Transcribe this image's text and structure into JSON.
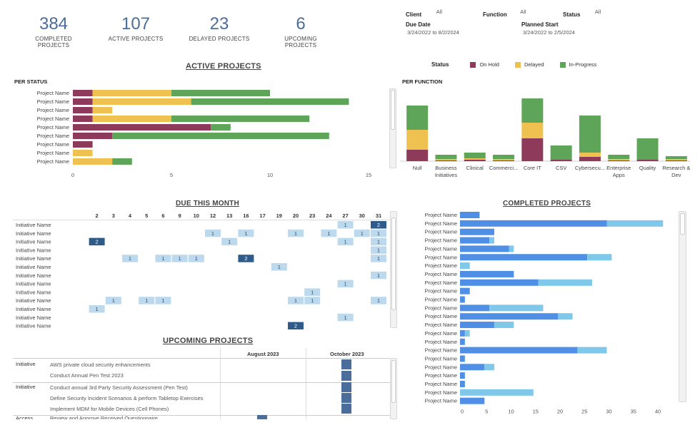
{
  "kpis": [
    {
      "value": "384",
      "label": "COMPLETED PROJECTS"
    },
    {
      "value": "107",
      "label": "ACTIVE PROJECTS"
    },
    {
      "value": "23",
      "label": "DELAYED PROJECTS"
    },
    {
      "value": "6",
      "label": "UPCOMING PROJECTS"
    }
  ],
  "filters": {
    "client_label": "Client",
    "client_value": "All",
    "function_label": "Function",
    "function_value": "All",
    "status_label": "Status",
    "status_value": "All",
    "due_label": "Due Date",
    "due_value": "3/24/2022 to 8/2/2024",
    "planned_label": "Planned Start",
    "planned_value": "3/24/2022 to 2/5/2024"
  },
  "colors": {
    "on_hold": "#8e3b5b",
    "delayed": "#efc150",
    "in_progress": "#5ea55a",
    "completed_dark": "#4f8fe6",
    "completed_light": "#7fc8ea",
    "heat_light": "#bcd9ee",
    "heat_dark": "#2f5b8a"
  },
  "legend": {
    "title": "Status",
    "items": [
      "On Hold",
      "Delayed",
      "In-Progress"
    ]
  },
  "active_title": "ACTIVE PROJECTS",
  "per_status_title": "PER STATUS",
  "per_function_title": "PER FUNCTION",
  "due_title": "DUE THIS MONTH",
  "completed_title": "COMPLETED PROJECTS",
  "upcoming_title": "UPCOMING PROJECTS",
  "chart_data": [
    {
      "type": "bar",
      "orientation": "horizontal",
      "stacked": true,
      "categories": [
        "Project Name",
        "Project Name",
        "Project Name",
        "Project Name",
        "Project Name",
        "Project Name",
        "Project Name",
        "Project Name",
        "Project Name"
      ],
      "series": [
        {
          "name": "On Hold",
          "values": [
            1,
            1,
            1,
            1,
            7,
            2,
            1,
            0,
            0
          ]
        },
        {
          "name": "Delayed",
          "values": [
            4,
            5,
            1,
            4,
            0,
            0,
            0,
            1,
            2
          ]
        },
        {
          "name": "In-Progress",
          "values": [
            5,
            8,
            0,
            7,
            1,
            11,
            0,
            0,
            1
          ]
        }
      ],
      "xticks": [
        "0",
        "5",
        "10",
        "15"
      ],
      "xlim": [
        0,
        15
      ]
    },
    {
      "type": "bar",
      "stacked": true,
      "categories": [
        "Null",
        "Business Initiatives",
        "Clinical",
        "Commerci...",
        "Core IT",
        "CSV",
        "Cybersecu...",
        "Enterprise Apps",
        "Quality",
        "Research & Dev"
      ],
      "series": [
        {
          "name": "On Hold",
          "values": [
            8,
            0.5,
            1,
            0.5,
            16,
            1,
            3,
            0.5,
            1,
            0.5
          ]
        },
        {
          "name": "Delayed",
          "values": [
            14,
            1,
            1,
            1,
            11,
            0,
            3,
            1,
            0,
            1
          ]
        },
        {
          "name": "In-Progress",
          "values": [
            17,
            3,
            4,
            3,
            17,
            10,
            26,
            3,
            15,
            2
          ]
        }
      ],
      "ylim": [
        0,
        45
      ]
    },
    {
      "type": "bar",
      "orientation": "horizontal",
      "stacked": true,
      "categories": [
        "Project Name",
        "Project Name",
        "Project Name",
        "Project Name",
        "Project Name",
        "Project Name",
        "Project Name",
        "Project Name",
        "Project Name",
        "Project Name",
        "Project Name",
        "Project Name",
        "Project Name",
        "Project Name",
        "Project Name",
        "Project Name",
        "Project Name",
        "Project Name",
        "Project Name",
        "Project Name",
        "Project Name",
        "Project Name",
        "Project Name"
      ],
      "series": [
        {
          "name": "Dark",
          "values": [
            4,
            30,
            7,
            6,
            10,
            26,
            0,
            11,
            16,
            2,
            1,
            6,
            20,
            7,
            1,
            1,
            24,
            1,
            5,
            1,
            1,
            0,
            5
          ]
        },
        {
          "name": "Light",
          "values": [
            0,
            11.5,
            0,
            1,
            1,
            5,
            2,
            0,
            11,
            0,
            0,
            11,
            3,
            4,
            1,
            0,
            6,
            0,
            2,
            0,
            0,
            15,
            0
          ]
        }
      ],
      "xticks": [
        "0",
        "5",
        "10",
        "15",
        "20",
        "25",
        "30",
        "35",
        "40"
      ],
      "xlim": [
        0,
        42
      ]
    },
    {
      "type": "heatmap",
      "columns": [
        "2",
        "3",
        "4",
        "5",
        "6",
        "9",
        "10",
        "12",
        "13",
        "16",
        "17",
        "19",
        "20",
        "23",
        "24",
        "27",
        "30",
        "31"
      ],
      "rows": [
        "Initiative Name",
        "Initiative Name",
        "Initiative Name",
        "Initiative Name",
        "Initiative Name",
        "Initiative Name",
        "Initiative Name",
        "Initiative Name",
        "Initiative Name",
        "Initiative Name",
        "Initiative Name",
        "Initiative Name",
        "Initiative Name"
      ],
      "cells": [
        {
          "r": 0,
          "c": 15,
          "v": 1
        },
        {
          "r": 0,
          "c": 17,
          "v": 2
        },
        {
          "r": 1,
          "c": 7,
          "v": 1
        },
        {
          "r": 1,
          "c": 9,
          "v": 1
        },
        {
          "r": 1,
          "c": 12,
          "v": 1
        },
        {
          "r": 1,
          "c": 14,
          "v": 1
        },
        {
          "r": 1,
          "c": 16,
          "v": 1
        },
        {
          "r": 1,
          "c": 17,
          "v": 1
        },
        {
          "r": 2,
          "c": 0,
          "v": 2
        },
        {
          "r": 2,
          "c": 8,
          "v": 1
        },
        {
          "r": 2,
          "c": 15,
          "v": 1
        },
        {
          "r": 2,
          "c": 17,
          "v": 1
        },
        {
          "r": 3,
          "c": 17,
          "v": 1
        },
        {
          "r": 4,
          "c": 2,
          "v": 1
        },
        {
          "r": 4,
          "c": 4,
          "v": 1
        },
        {
          "r": 4,
          "c": 5,
          "v": 1
        },
        {
          "r": 4,
          "c": 6,
          "v": 1
        },
        {
          "r": 4,
          "c": 9,
          "v": 2
        },
        {
          "r": 4,
          "c": 17,
          "v": 1
        },
        {
          "r": 5,
          "c": 11,
          "v": 1
        },
        {
          "r": 6,
          "c": 17,
          "v": 1
        },
        {
          "r": 7,
          "c": 15,
          "v": 1
        },
        {
          "r": 8,
          "c": 13,
          "v": 1
        },
        {
          "r": 9,
          "c": 1,
          "v": 1
        },
        {
          "r": 9,
          "c": 3,
          "v": 1
        },
        {
          "r": 9,
          "c": 4,
          "v": 1
        },
        {
          "r": 9,
          "c": 12,
          "v": 1
        },
        {
          "r": 9,
          "c": 13,
          "v": 1
        },
        {
          "r": 9,
          "c": 17,
          "v": 1
        },
        {
          "r": 10,
          "c": 0,
          "v": 1
        },
        {
          "r": 11,
          "c": 15,
          "v": 1
        },
        {
          "r": 12,
          "c": 12,
          "v": 2
        }
      ]
    }
  ],
  "upcoming": {
    "months": [
      "August 2023",
      "October 2023"
    ],
    "groups": [
      {
        "label": "Initiative",
        "items": [
          "AWS private cloud security enhancements",
          "Conduct Annual Pen Test 2023"
        ]
      },
      {
        "label": "Initiative",
        "items": [
          "Conduct annual 3rd Party Security Assessment (Pen Test)",
          "Define Security Incident Scenarios & perform Tabletop Exercises",
          "Implement MDM for Mobile Devices (Cell Phones)"
        ]
      },
      {
        "label": "Access",
        "items": [
          "Review and Approve Received Questionnaire"
        ]
      }
    ]
  }
}
